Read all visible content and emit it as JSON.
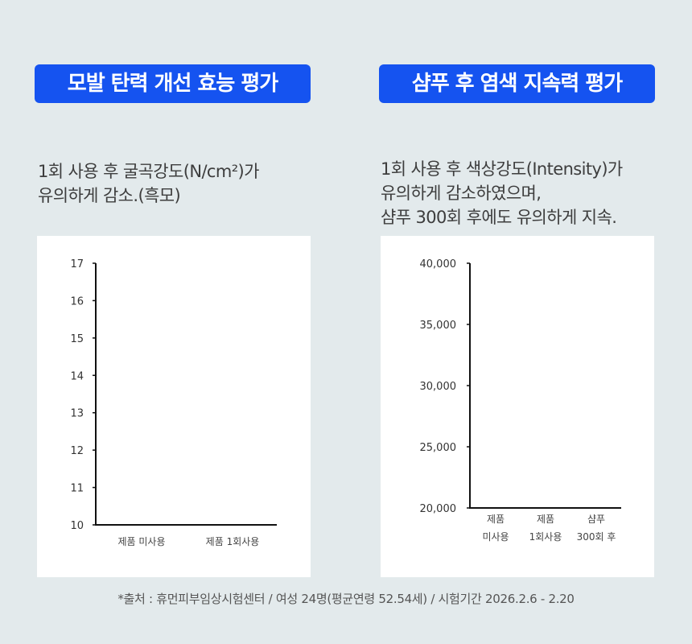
{
  "left": {
    "badge": "모발 탄력 개선 효능 평가",
    "desc_lines": [
      "1회 사용 후 굴곡강도(N/cm²)가",
      "유의하게 감소.(흑모)"
    ]
  },
  "right": {
    "badge": "샴푸 후 염색 지속력 평가",
    "desc_lines": [
      "1회 사용 후 색상강도(Intensity)가",
      "유의하게 감소하였으며,",
      "샴푸 300회 후에도 유의하게 지속."
    ]
  },
  "chart_data": [
    {
      "type": "bar",
      "title": "",
      "xlabel": "",
      "ylabel": "",
      "ylim": [
        10,
        17
      ],
      "yticks": [
        "17",
        "16",
        "15",
        "14",
        "13",
        "12",
        "11",
        "10"
      ],
      "categories": [
        [
          "제품 미사용"
        ],
        [
          "제품 1회사용"
        ]
      ],
      "values": [
        null,
        null
      ],
      "grid": false
    },
    {
      "type": "bar",
      "title": "",
      "xlabel": "",
      "ylabel": "",
      "ylim": [
        20000,
        40000
      ],
      "yticks": [
        "40,000",
        "35,000",
        "30,000",
        "25,000",
        "20,000"
      ],
      "categories": [
        [
          "제품",
          "미사용"
        ],
        [
          "제품",
          "1회사용"
        ],
        [
          "샴푸",
          "300회 후"
        ]
      ],
      "values": [
        null,
        null,
        null
      ],
      "grid": false
    }
  ],
  "footnote": "*출처 : 휴먼피부임상시험센터 / 여성 24명(평균연령 52.54세) / 시험기간 2026.2.6 - 2.20"
}
